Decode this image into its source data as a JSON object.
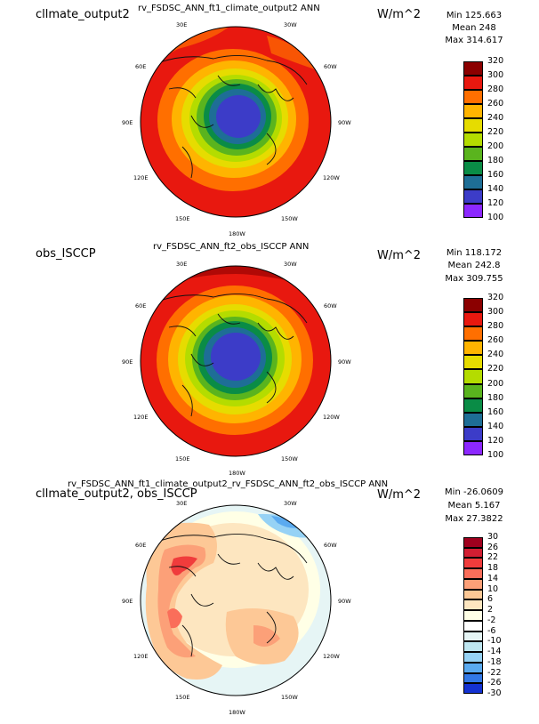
{
  "panels": [
    {
      "left_title": "cllmate_output2",
      "center_title": "rv_FSDSC_ANN_ft1_climate_output2  ANN",
      "units": "W/m^2",
      "stats": {
        "min": "Min 125.663",
        "mean": "Mean 248",
        "max": "Max 314.617"
      },
      "lon_labels": [
        "30E",
        "30W",
        "60E",
        "60W",
        "90E",
        "90W",
        "120E",
        "120W",
        "150E",
        "150W",
        "180W"
      ],
      "colorbar_ticks": [
        "320",
        "300",
        "280",
        "260",
        "240",
        "220",
        "200",
        "180",
        "160",
        "140",
        "120",
        "100"
      ],
      "colorbar_colors": [
        "#8b0000",
        "#e8180f",
        "#ff6f00",
        "#ffb400",
        "#e6dc00",
        "#b4dc00",
        "#5ab41e",
        "#0a8c46",
        "#1e6e96",
        "#3c3cc8",
        "#8c28ff"
      ]
    },
    {
      "left_title": "obs_ISCCP",
      "center_title": "rv_FSDSC_ANN_ft2_obs_ISCCP  ANN",
      "units": "W/m^2",
      "stats": {
        "min": "Min 118.172",
        "mean": "Mean 242.8",
        "max": "Max 309.755"
      },
      "lon_labels": [
        "30E",
        "30W",
        "60E",
        "60W",
        "90E",
        "90W",
        "120E",
        "120W",
        "150E",
        "150W",
        "180W"
      ],
      "colorbar_ticks": [
        "320",
        "300",
        "280",
        "260",
        "240",
        "220",
        "200",
        "180",
        "160",
        "140",
        "120",
        "100"
      ],
      "colorbar_colors": [
        "#8b0000",
        "#e8180f",
        "#ff6f00",
        "#ffb400",
        "#e6dc00",
        "#b4dc00",
        "#5ab41e",
        "#0a8c46",
        "#1e6e96",
        "#3c3cc8",
        "#8c28ff"
      ]
    },
    {
      "left_title": "cllmate_output2, obs_ISCCP",
      "center_title": "rv_FSDSC_ANN_ft1_climate_output2_rv_FSDSC_ANN_ft2_obs_ISCCP  ANN",
      "units": "W/m^2",
      "stats": {
        "min": "Min -26.0609",
        "mean": "Mean 5.167",
        "max": "Max 27.3822"
      },
      "lon_labels": [
        "30E",
        "30W",
        "60E",
        "60W",
        "90E",
        "90W",
        "120E",
        "120W",
        "150E",
        "150W",
        "180W"
      ],
      "colorbar_ticks": [
        "30",
        "26",
        "22",
        "18",
        "14",
        "10",
        "6",
        "2",
        "-2",
        "-6",
        "-10",
        "-14",
        "-18",
        "-22",
        "-26",
        "-30"
      ],
      "colorbar_colors": [
        "#a0001e",
        "#d21e32",
        "#f03c3c",
        "#fa6e5a",
        "#fca078",
        "#fdc896",
        "#fde6c0",
        "#ffffe6",
        "#ffffff",
        "#e6f5f5",
        "#bee6f0",
        "#96d2f5",
        "#5aaaf0",
        "#3278e6",
        "#1432d2"
      ]
    }
  ],
  "chart_data": [
    {
      "type": "heatmap",
      "projection": "north polar stereographic",
      "title": "rv_FSDSC_ANN_ft1_climate_output2  ANN",
      "units": "W/m^2",
      "min": 125.663,
      "mean": 248,
      "max": 314.617,
      "levels": [
        100,
        120,
        140,
        160,
        180,
        200,
        220,
        240,
        260,
        280,
        300,
        320
      ]
    },
    {
      "type": "heatmap",
      "projection": "north polar stereographic",
      "title": "rv_FSDSC_ANN_ft2_obs_ISCCP  ANN",
      "units": "W/m^2",
      "min": 118.172,
      "mean": 242.8,
      "max": 309.755,
      "levels": [
        100,
        120,
        140,
        160,
        180,
        200,
        220,
        240,
        260,
        280,
        300,
        320
      ]
    },
    {
      "type": "heatmap",
      "projection": "north polar stereographic",
      "title": "rv_FSDSC_ANN_ft1_climate_output2_rv_FSDSC_ANN_ft2_obs_ISCCP  ANN",
      "units": "W/m^2",
      "min": -26.0609,
      "mean": 5.167,
      "max": 27.3822,
      "levels": [
        -30,
        -26,
        -22,
        -18,
        -14,
        -10,
        -6,
        -2,
        2,
        6,
        10,
        14,
        18,
        22,
        26,
        30
      ]
    }
  ]
}
